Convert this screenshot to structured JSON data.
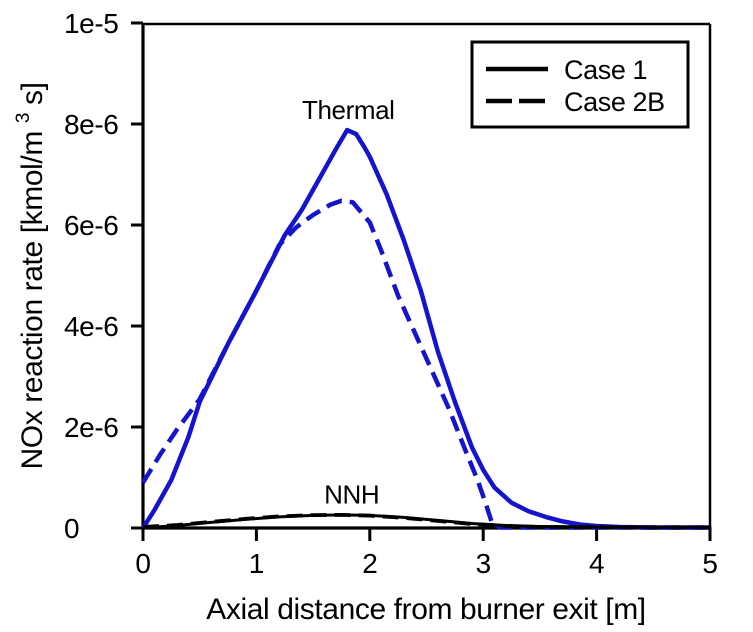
{
  "figure_title": "",
  "chart_data": {
    "type": "line",
    "xlabel": "Axial distance from burner exit [m]",
    "ylabel": "NOx reaction rate [kmol/m3s]",
    "ylabel_parts": {
      "pre": "NOx reaction rate [kmol/m",
      "sup": "3",
      "post": "s]"
    },
    "xlim": [
      0,
      5
    ],
    "ylim": [
      0,
      1e-05
    ],
    "grid": false,
    "x_ticks": [
      {
        "v": 0,
        "label": "0"
      },
      {
        "v": 1,
        "label": "1"
      },
      {
        "v": 2,
        "label": "2"
      },
      {
        "v": 3,
        "label": "3"
      },
      {
        "v": 4,
        "label": "4"
      },
      {
        "v": 5,
        "label": "5"
      }
    ],
    "y_ticks": [
      {
        "v": 0,
        "label": "0"
      },
      {
        "v": 2e-06,
        "label": "2e-6"
      },
      {
        "v": 4e-06,
        "label": "4e-6"
      },
      {
        "v": 6e-06,
        "label": "6e-6"
      },
      {
        "v": 8e-06,
        "label": "8e-6"
      },
      {
        "v": 1e-05,
        "label": "1e-5"
      }
    ],
    "colors": {
      "case_lines_thermal": "#1414cf",
      "case_lines_nnh": "#000000",
      "frame": "#000000",
      "background": "#ffffff"
    },
    "legend": {
      "position": "top-right",
      "entries": [
        {
          "label": "Case 1",
          "style": "solid",
          "color": "#000000"
        },
        {
          "label": "Case 2B",
          "style": "dashed",
          "color": "#000000"
        }
      ]
    },
    "annotations": [
      {
        "text": "Thermal",
        "x": 1.81,
        "y": 8.1e-06
      },
      {
        "text": "NNH",
        "x": 1.84,
        "y": 4.9e-07
      }
    ],
    "series": [
      {
        "name": "Thermal — Case 1",
        "group": "Thermal",
        "case": "Case 1",
        "color": "#1414cf",
        "style": "solid",
        "width": 4.5,
        "points": [
          [
            0,
            0
          ],
          [
            0.1,
            3.5e-07
          ],
          [
            0.25,
            9.5e-07
          ],
          [
            0.4,
            1.8e-06
          ],
          [
            0.5,
            2.5e-06
          ],
          [
            0.75,
            3.65e-06
          ],
          [
            1.0,
            4.7e-06
          ],
          [
            1.25,
            5.8e-06
          ],
          [
            1.4,
            6.3e-06
          ],
          [
            1.55,
            6.9e-06
          ],
          [
            1.7,
            7.5e-06
          ],
          [
            1.8,
            7.88e-06
          ],
          [
            1.88,
            7.8e-06
          ],
          [
            1.95,
            7.55e-06
          ],
          [
            2.0,
            7.35e-06
          ],
          [
            2.05,
            7.1e-06
          ],
          [
            2.15,
            6.6e-06
          ],
          [
            2.3,
            5.7e-06
          ],
          [
            2.45,
            4.7e-06
          ],
          [
            2.6,
            3.5e-06
          ],
          [
            2.75,
            2.5e-06
          ],
          [
            2.9,
            1.6e-06
          ],
          [
            3.0,
            1.15e-06
          ],
          [
            3.1,
            8e-07
          ],
          [
            3.25,
            5e-07
          ],
          [
            3.4,
            3.3e-07
          ],
          [
            3.55,
            2.2e-07
          ],
          [
            3.7,
            1.3e-07
          ],
          [
            3.85,
            7e-08
          ],
          [
            4.0,
            4e-08
          ],
          [
            4.2,
            2e-08
          ],
          [
            4.5,
            1e-08
          ],
          [
            5,
            1e-08
          ]
        ]
      },
      {
        "name": "Thermal — Case 2B",
        "group": "Thermal",
        "case": "Case 2B",
        "color": "#1414cf",
        "style": "dashed",
        "width": 4.5,
        "points": [
          [
            0,
            9e-07
          ],
          [
            0.15,
            1.45e-06
          ],
          [
            0.3,
            1.95e-06
          ],
          [
            0.5,
            2.55e-06
          ],
          [
            0.75,
            3.65e-06
          ],
          [
            1.0,
            4.7e-06
          ],
          [
            1.2,
            5.6e-06
          ],
          [
            1.35,
            5.95e-06
          ],
          [
            1.5,
            6.2e-06
          ],
          [
            1.65,
            6.4e-06
          ],
          [
            1.75,
            6.48e-06
          ],
          [
            1.85,
            6.45e-06
          ],
          [
            2.0,
            6.05e-06
          ],
          [
            2.1,
            5.5e-06
          ],
          [
            2.25,
            4.6e-06
          ],
          [
            2.4,
            3.85e-06
          ],
          [
            2.55,
            3.1e-06
          ],
          [
            2.7,
            2.35e-06
          ],
          [
            2.85,
            1.5e-06
          ],
          [
            2.95,
            9.5e-07
          ],
          [
            3.02,
            5e-07
          ],
          [
            3.08,
            8e-08
          ],
          [
            3.15,
            1e-08
          ],
          [
            3.5,
            1e-08
          ],
          [
            4,
            1e-08
          ],
          [
            4.5,
            1e-08
          ],
          [
            5,
            1e-08
          ]
        ]
      },
      {
        "name": "NNH — Case 1",
        "group": "NNH",
        "case": "Case 1",
        "color": "#000000",
        "style": "solid",
        "width": 3,
        "points": [
          [
            0,
            0
          ],
          [
            0.3,
            5e-08
          ],
          [
            0.6,
            1.1e-07
          ],
          [
            0.9,
            1.7e-07
          ],
          [
            1.2,
            2.2e-07
          ],
          [
            1.5,
            2.5e-07
          ],
          [
            1.75,
            2.6e-07
          ],
          [
            2.0,
            2.5e-07
          ],
          [
            2.3,
            2.1e-07
          ],
          [
            2.6,
            1.5e-07
          ],
          [
            2.9,
            9e-08
          ],
          [
            3.2,
            5e-08
          ],
          [
            3.5,
            3e-08
          ],
          [
            4.0,
            2e-08
          ],
          [
            4.5,
            1.5e-08
          ],
          [
            5,
            1.5e-08
          ]
        ]
      },
      {
        "name": "NNH — Case 2B",
        "group": "NNH",
        "case": "Case 2B",
        "color": "#000000",
        "style": "dashed",
        "width": 3.8,
        "points": [
          [
            0,
            2e-08
          ],
          [
            0.3,
            6e-08
          ],
          [
            0.6,
            1.2e-07
          ],
          [
            0.9,
            1.8e-07
          ],
          [
            1.2,
            2.3e-07
          ],
          [
            1.5,
            2.55e-07
          ],
          [
            1.75,
            2.6e-07
          ],
          [
            2.0,
            2.45e-07
          ],
          [
            2.3,
            2e-07
          ],
          [
            2.6,
            1.4e-07
          ],
          [
            2.9,
            8e-08
          ],
          [
            3.2,
            4e-08
          ],
          [
            3.5,
            2e-08
          ],
          [
            4.0,
            1.5e-08
          ],
          [
            4.5,
            1e-08
          ],
          [
            5,
            1e-08
          ]
        ]
      }
    ]
  }
}
